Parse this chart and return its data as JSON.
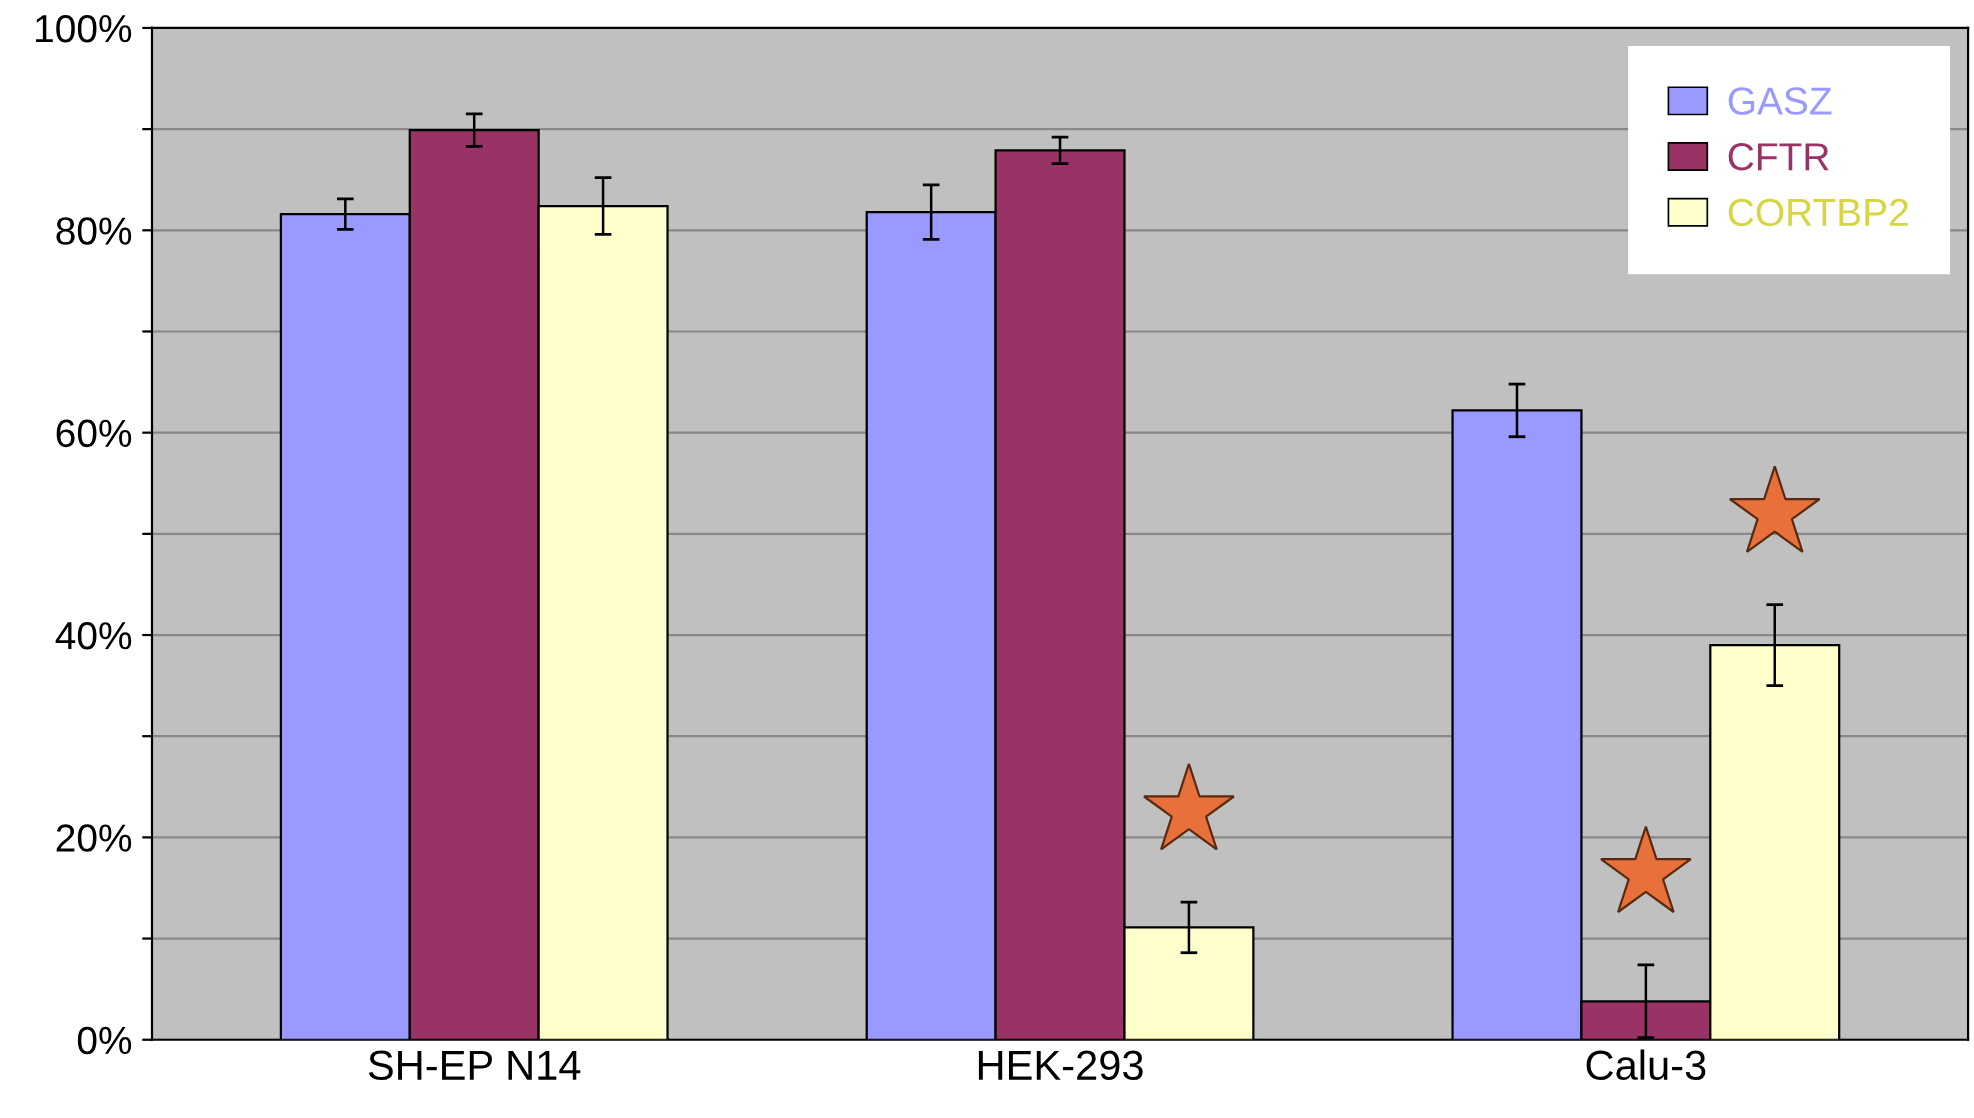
{
  "chart_data": {
    "type": "bar",
    "categories": [
      "SH-EP N14",
      "HEK-293",
      "Calu-3"
    ],
    "series": [
      {
        "name": "GASZ",
        "color": "#9999ff",
        "values": [
          81.6,
          81.8,
          62.2
        ],
        "errors": [
          1.5,
          2.7,
          2.6
        ]
      },
      {
        "name": "CFTR",
        "color": "#993366",
        "values": [
          89.9,
          87.9,
          3.8
        ],
        "errors": [
          1.6,
          1.3,
          3.6
        ]
      },
      {
        "name": "CORTBP2",
        "color": "#ffffcc",
        "values": [
          82.4,
          11.1,
          39.0
        ],
        "errors": [
          2.8,
          2.5,
          4.0
        ]
      }
    ],
    "ylim": [
      0,
      100
    ],
    "yticks": [
      {
        "value": 0,
        "label": "0%"
      },
      {
        "value": 10,
        "label": null
      },
      {
        "value": 20,
        "label": "20%"
      },
      {
        "value": 30,
        "label": null
      },
      {
        "value": 40,
        "label": "40%"
      },
      {
        "value": 50,
        "label": null
      },
      {
        "value": 60,
        "label": "60%"
      },
      {
        "value": 70,
        "label": null
      },
      {
        "value": 80,
        "label": "80%"
      },
      {
        "value": 90,
        "label": null
      },
      {
        "value": 100,
        "label": "100%"
      }
    ],
    "grid": "y",
    "legend": "top right"
  }
}
